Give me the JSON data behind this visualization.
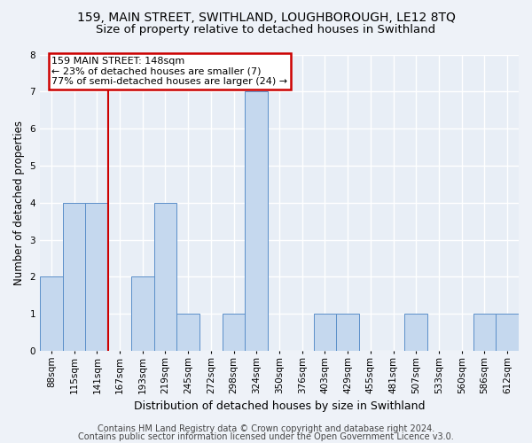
{
  "title1": "159, MAIN STREET, SWITHLAND, LOUGHBOROUGH, LE12 8TQ",
  "title2": "Size of property relative to detached houses in Swithland",
  "xlabel": "Distribution of detached houses by size in Swithland",
  "ylabel": "Number of detached properties",
  "categories": [
    "88sqm",
    "115sqm",
    "141sqm",
    "167sqm",
    "193sqm",
    "219sqm",
    "245sqm",
    "272sqm",
    "298sqm",
    "324sqm",
    "350sqm",
    "376sqm",
    "403sqm",
    "429sqm",
    "455sqm",
    "481sqm",
    "507sqm",
    "533sqm",
    "560sqm",
    "586sqm",
    "612sqm"
  ],
  "values": [
    2,
    4,
    4,
    0,
    2,
    4,
    1,
    0,
    1,
    7,
    0,
    0,
    1,
    1,
    0,
    0,
    1,
    0,
    0,
    1,
    1
  ],
  "bar_color": "#c5d8ee",
  "bar_edge_color": "#5b8fc9",
  "vline_x": 2.5,
  "vline_color": "#cc0000",
  "box_edge_color": "#cc0000",
  "annotation_line1": "159 MAIN STREET: 148sqm",
  "annotation_line2": "← 23% of detached houses are smaller (7)",
  "annotation_line3": "77% of semi-detached houses are larger (24) →",
  "ylim": [
    0,
    8
  ],
  "yticks": [
    0,
    1,
    2,
    3,
    4,
    5,
    6,
    7,
    8
  ],
  "footer1": "Contains HM Land Registry data © Crown copyright and database right 2024.",
  "footer2": "Contains public sector information licensed under the Open Government Licence v3.0.",
  "bg_color": "#eef2f8",
  "plot_bg_color": "#e8eef6",
  "grid_color": "#ffffff",
  "title1_fontsize": 10,
  "title2_fontsize": 9.5,
  "xlabel_fontsize": 9,
  "ylabel_fontsize": 8.5,
  "tick_fontsize": 7.5,
  "annot_fontsize": 8,
  "footer_fontsize": 7
}
